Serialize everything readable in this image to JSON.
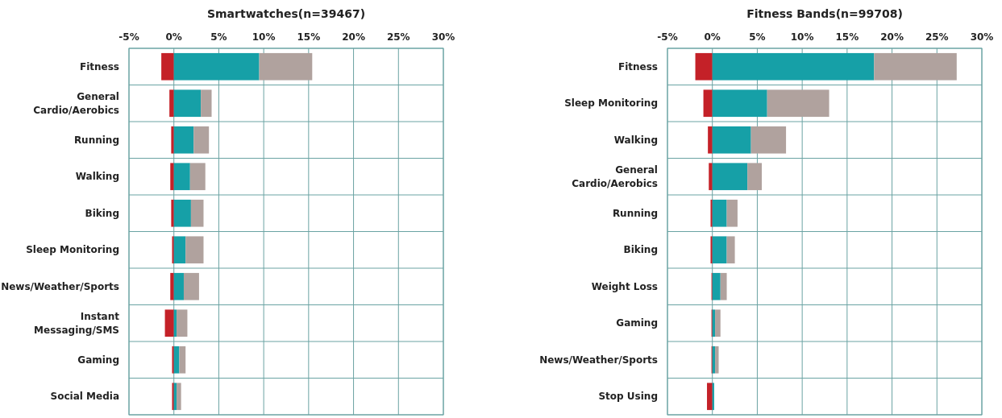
{
  "chart_data": [
    {
      "type": "bar",
      "orientation": "horizontal",
      "stacked": true,
      "title": "Smartwatches(n=39467)",
      "categories": [
        "Fitness",
        "General Cardio/Aerobics",
        "Running",
        "Walking",
        "Biking",
        "Sleep Monitoring",
        "News/Weather/Sports",
        "Instant Messaging/SMS",
        "Gaming",
        "Social Media"
      ],
      "series": [
        {
          "color": "#c42128",
          "values": [
            -1.4,
            -0.5,
            -0.3,
            -0.4,
            -0.3,
            -0.2,
            -0.4,
            -1.0,
            -0.2,
            -0.2
          ]
        },
        {
          "color": "#16a0a7",
          "values": [
            9.5,
            3.0,
            2.2,
            1.8,
            1.9,
            1.3,
            1.1,
            0.3,
            0.6,
            0.3
          ]
        },
        {
          "color": "#b0a29e",
          "values": [
            5.9,
            1.2,
            1.7,
            1.7,
            1.4,
            2.0,
            1.7,
            1.2,
            0.7,
            0.5
          ]
        }
      ],
      "xlim": [
        -5,
        30
      ],
      "xticks": [
        {
          "value": -5,
          "label": "-5%"
        },
        {
          "value": 0,
          "label": "0%"
        },
        {
          "value": 5,
          "label": "5%"
        },
        {
          "value": 10,
          "label": "10%"
        },
        {
          "value": 15,
          "label": "15%"
        },
        {
          "value": 20,
          "label": "20%"
        },
        {
          "value": 25,
          "label": "25%"
        },
        {
          "value": 30,
          "label": "30%"
        }
      ],
      "grid": true
    },
    {
      "type": "bar",
      "orientation": "horizontal",
      "stacked": true,
      "title": "Fitness Bands(n=99708)",
      "categories": [
        "Fitness",
        "Sleep Monitoring",
        "Walking",
        "General Cardio/Aerobics",
        "Running",
        "Biking",
        "Weight Loss",
        "Gaming",
        "News/Weather/Sports",
        "Stop Using"
      ],
      "series": [
        {
          "color": "#c42128",
          "values": [
            -1.9,
            -1.0,
            -0.5,
            -0.4,
            -0.2,
            -0.2,
            -0.1,
            -0.1,
            -0.1,
            -0.6
          ]
        },
        {
          "color": "#16a0a7",
          "values": [
            18.0,
            6.1,
            4.3,
            3.9,
            1.6,
            1.6,
            0.9,
            0.3,
            0.3,
            0.2
          ]
        },
        {
          "color": "#b0a29e",
          "values": [
            9.2,
            6.9,
            3.9,
            1.6,
            1.2,
            0.9,
            0.7,
            0.6,
            0.4,
            0
          ]
        }
      ],
      "xlim": [
        -5,
        30
      ],
      "xticks": [
        {
          "value": -5,
          "label": "-5%"
        },
        {
          "value": 0,
          "label": "0%"
        },
        {
          "value": 5,
          "label": "5%"
        },
        {
          "value": 10,
          "label": "10%"
        },
        {
          "value": 15,
          "label": "15%"
        },
        {
          "value": 20,
          "label": "20%"
        },
        {
          "value": 25,
          "label": "25%"
        },
        {
          "value": 30,
          "label": "30%"
        }
      ],
      "grid": true
    }
  ]
}
